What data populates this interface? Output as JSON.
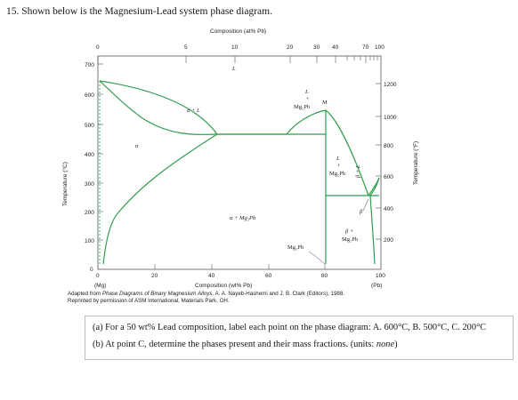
{
  "problem": {
    "heading": "15. Shown below is the Magnesium-Lead system phase diagram."
  },
  "figure": {
    "top_axis_title": "Composition (at% Pb)",
    "top_ticks": [
      "0",
      "5",
      "10",
      "20",
      "30",
      "40",
      "70",
      "100"
    ],
    "left_axis_title": "Temperature (°C)",
    "left_ticks": [
      "700",
      "600",
      "500",
      "400",
      "300",
      "200",
      "100",
      "0"
    ],
    "right_axis_title": "Temperature (°F)",
    "right_ticks": [
      "1200",
      "1000",
      "800",
      "600",
      "400",
      "200"
    ],
    "bottom_ticks": [
      "0",
      "20",
      "40",
      "60",
      "80",
      "100"
    ],
    "bottom_left_label": "(Mg)",
    "bottom_right_label": "(Pb)",
    "bottom_axis_title": "Composition (wt% Pb)",
    "regions": {
      "liquid": "L",
      "liquid_top": "L",
      "liquid_plus": "+",
      "mg2pb_label_a": "Mg₂Pb",
      "alpha_plus_l": "α + L",
      "alpha": "α",
      "alpha_plus_mg2pb": "α + Mg₂Pb",
      "m_point": "M",
      "l_plus_mg2pb_l": "L",
      "l_plus_mg2pb_plus": "+",
      "l_plus_mg2pb_m": "Mg₂Pb",
      "beta_plus_l": "β + L",
      "beta": "β",
      "beta_plus_mg2pb_b": "β +",
      "beta_plus_mg2pb_m": "Mg₂Pb",
      "mg2pb_bottom": "Mg₂Pb"
    },
    "caption_line1_prefix": "Adapted from ",
    "caption_line1_italic": "Phase Diagrams of Binary Magnesium Alloys,",
    "caption_line1_suffix": " A. A. Nayeb-Hashemi and J. B. Clark (Editors), 1988.",
    "caption_line2": "Reprinted by permission of ASM International, Materials Park, OH."
  },
  "questions": {
    "a": "(a) For a 50 wt% Lead composition, label each point on the phase diagram: A. 600°C, B. 500°C, C. 200°C",
    "b_prefix": "(b) At point C, determine the phases present and their mass fractions. (units: ",
    "b_units": "none",
    "b_suffix": ")"
  },
  "colors": {
    "phase_line": "#2e9e4e",
    "axis": "#333333",
    "box_border": "#bdbdbd"
  }
}
